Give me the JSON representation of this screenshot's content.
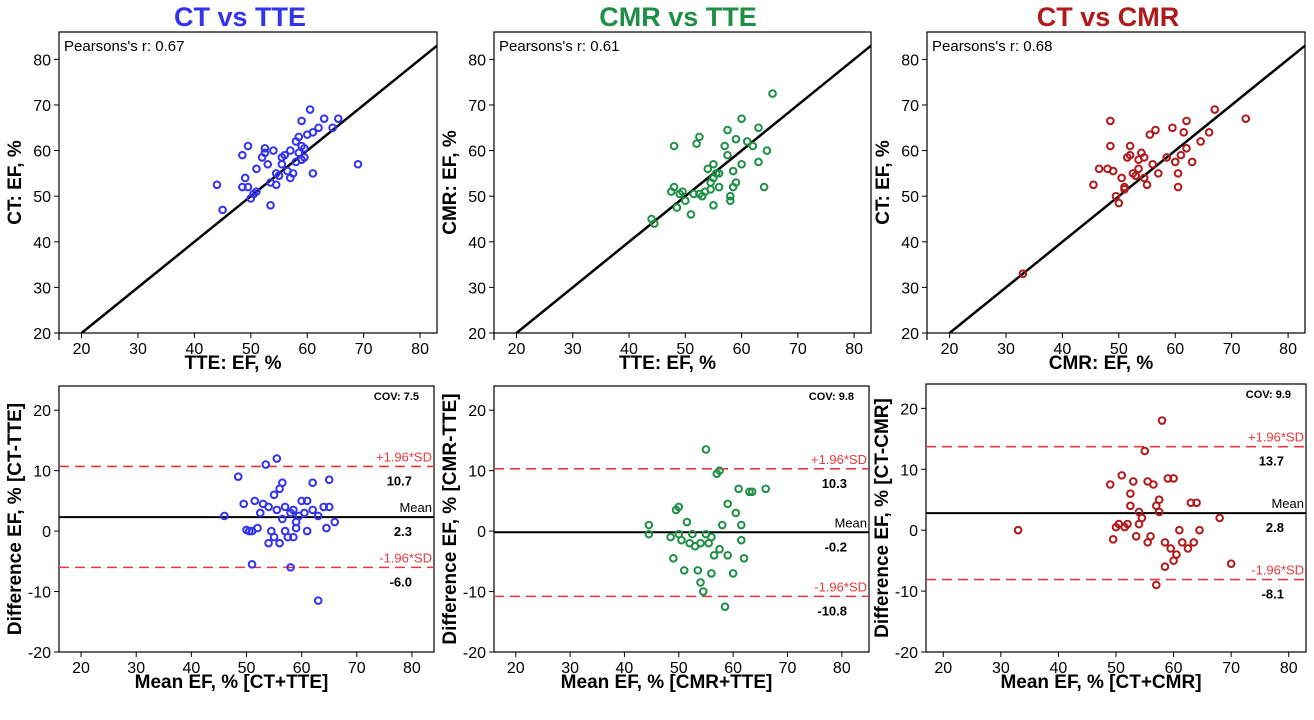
{
  "column_titles": [
    {
      "text": "CT vs TTE",
      "color": "#3333ee"
    },
    {
      "text": "CMR vs TTE",
      "color": "#1f8f45"
    },
    {
      "text": "CT vs CMR",
      "color": "#b01a1a"
    }
  ],
  "chart_data": [
    {
      "type": "scatter",
      "title": "CT vs TTE",
      "annotation": "Pearsons's r: 0.67",
      "xlabel": "TTE: EF, %",
      "ylabel": "CT: EF, %",
      "xlim": [
        16,
        83
      ],
      "ylim": [
        20,
        86
      ],
      "xticks": [
        20,
        30,
        40,
        50,
        60,
        70,
        80
      ],
      "yticks": [
        20,
        30,
        40,
        50,
        60,
        70,
        80
      ],
      "color": "#3333ee",
      "identity_line": true,
      "points": [
        [
          44,
          52.5
        ],
        [
          45,
          47
        ],
        [
          48.5,
          52
        ],
        [
          48.5,
          59
        ],
        [
          49,
          54
        ],
        [
          49.5,
          61
        ],
        [
          49.5,
          52
        ],
        [
          50,
          49.5
        ],
        [
          50.5,
          50.5
        ],
        [
          51,
          56
        ],
        [
          51,
          51
        ],
        [
          52,
          58.5
        ],
        [
          52.5,
          59.5
        ],
        [
          52.5,
          60.5
        ],
        [
          53,
          57
        ],
        [
          53.5,
          53
        ],
        [
          53.5,
          48
        ],
        [
          54,
          60
        ],
        [
          54.5,
          55
        ],
        [
          54.5,
          52.5
        ],
        [
          55,
          54.5
        ],
        [
          55.5,
          58.5
        ],
        [
          55.5,
          57
        ],
        [
          56,
          59
        ],
        [
          56.5,
          55.5
        ],
        [
          57,
          54
        ],
        [
          57,
          60
        ],
        [
          57.5,
          55
        ],
        [
          58,
          62
        ],
        [
          58,
          57.5
        ],
        [
          58.5,
          63
        ],
        [
          58.5,
          59.5
        ],
        [
          59,
          61
        ],
        [
          59,
          58
        ],
        [
          59,
          66.5
        ],
        [
          59.5,
          60.5
        ],
        [
          59.5,
          58.5
        ],
        [
          60,
          63.5
        ],
        [
          60.5,
          69
        ],
        [
          61,
          55
        ],
        [
          61,
          64
        ],
        [
          62,
          65
        ],
        [
          63,
          67
        ],
        [
          64.5,
          65
        ],
        [
          65.5,
          67
        ],
        [
          69,
          57
        ]
      ]
    },
    {
      "type": "scatter",
      "title": "CMR vs TTE",
      "annotation": "Pearsons's r: 0.61",
      "xlabel": "TTE: EF, %",
      "ylabel": "CMR: EF, %",
      "xlim": [
        16,
        83
      ],
      "ylim": [
        20,
        86
      ],
      "xticks": [
        20,
        30,
        40,
        50,
        60,
        70,
        80
      ],
      "yticks": [
        20,
        30,
        40,
        50,
        60,
        70,
        80
      ],
      "color": "#1f8f45",
      "identity_line": true,
      "points": [
        [
          44,
          45
        ],
        [
          44.5,
          44
        ],
        [
          47.5,
          51
        ],
        [
          48,
          61
        ],
        [
          48,
          52
        ],
        [
          48.5,
          47.5
        ],
        [
          49,
          50.5
        ],
        [
          49.5,
          51
        ],
        [
          50,
          49
        ],
        [
          51,
          46
        ],
        [
          51.5,
          50.5
        ],
        [
          52,
          61.5
        ],
        [
          52.5,
          63
        ],
        [
          52.5,
          50.5
        ],
        [
          53,
          50
        ],
        [
          53.5,
          51
        ],
        [
          54,
          56
        ],
        [
          54.5,
          53
        ],
        [
          54.5,
          51.5
        ],
        [
          55,
          57
        ],
        [
          55,
          54
        ],
        [
          55,
          48
        ],
        [
          55.5,
          55
        ],
        [
          56,
          55
        ],
        [
          56,
          52
        ],
        [
          57,
          61
        ],
        [
          57.5,
          64.5
        ],
        [
          57.5,
          59
        ],
        [
          58,
          50
        ],
        [
          58,
          49
        ],
        [
          58.5,
          55.5
        ],
        [
          58.5,
          52
        ],
        [
          59,
          53
        ],
        [
          59,
          62.5
        ],
        [
          60,
          67
        ],
        [
          60,
          57
        ],
        [
          61,
          62
        ],
        [
          62,
          61
        ],
        [
          63,
          65
        ],
        [
          63,
          57.5
        ],
        [
          64,
          52
        ],
        [
          64.5,
          60
        ],
        [
          65.5,
          72.5
        ]
      ]
    },
    {
      "type": "scatter",
      "title": "CT vs CMR",
      "annotation": "Pearsons's r: 0.68",
      "xlabel": "CMR: EF, %",
      "ylabel": "CT: EF, %",
      "xlim": [
        16,
        83
      ],
      "ylim": [
        20,
        86
      ],
      "xticks": [
        20,
        30,
        40,
        50,
        60,
        70,
        80
      ],
      "yticks": [
        20,
        30,
        40,
        50,
        60,
        70,
        80
      ],
      "color": "#b01a1a",
      "identity_line": true,
      "points": [
        [
          33,
          33
        ],
        [
          45.5,
          52.5
        ],
        [
          46.5,
          56
        ],
        [
          48,
          56
        ],
        [
          48.5,
          61
        ],
        [
          48.5,
          66.5
        ],
        [
          49,
          55.5
        ],
        [
          49.5,
          50
        ],
        [
          50,
          48.5
        ],
        [
          50.5,
          54
        ],
        [
          51,
          52
        ],
        [
          51,
          51.5
        ],
        [
          51.5,
          58.5
        ],
        [
          52,
          59
        ],
        [
          52,
          61
        ],
        [
          52.5,
          55
        ],
        [
          53,
          54.5
        ],
        [
          53.5,
          58
        ],
        [
          53.5,
          56
        ],
        [
          54,
          59.5
        ],
        [
          54.5,
          58.5
        ],
        [
          54.5,
          54
        ],
        [
          55,
          52.5
        ],
        [
          55.5,
          63.5
        ],
        [
          56,
          57
        ],
        [
          56.5,
          64.5
        ],
        [
          57,
          55
        ],
        [
          58.5,
          58.5
        ],
        [
          59.5,
          65
        ],
        [
          60,
          57.5
        ],
        [
          60.5,
          52
        ],
        [
          60.5,
          55
        ],
        [
          61,
          59
        ],
        [
          61.5,
          64
        ],
        [
          62,
          60.5
        ],
        [
          62,
          66.5
        ],
        [
          63,
          57.5
        ],
        [
          64.5,
          62
        ],
        [
          66,
          64
        ],
        [
          67,
          69
        ],
        [
          72.5,
          67
        ]
      ]
    },
    {
      "type": "scatter",
      "title": "",
      "annotation": "COV: 7.5",
      "xlabel": "Mean EF, % [CT+TTE]",
      "ylabel": "Difference EF, % [CT-TTE]",
      "xlim": [
        16,
        84
      ],
      "ylim": [
        -20,
        24
      ],
      "xticks": [
        20,
        30,
        40,
        50,
        60,
        70,
        80
      ],
      "yticks": [
        -20,
        -10,
        0,
        10,
        20
      ],
      "color": "#3333ee",
      "lines": [
        {
          "kind": "upper",
          "value": 10.7,
          "label": "+1.96*SD",
          "value_label": "10.7"
        },
        {
          "kind": "mean",
          "value": 2.3,
          "label": "Mean",
          "value_label": "2.3"
        },
        {
          "kind": "lower",
          "value": -6.0,
          "label": "-1.96*SD",
          "value_label": "-6.0"
        }
      ],
      "points": [
        [
          46,
          2.5
        ],
        [
          48.5,
          9
        ],
        [
          49.5,
          4.5
        ],
        [
          50,
          0.2
        ],
        [
          50.5,
          0
        ],
        [
          51,
          0
        ],
        [
          51,
          -5.5
        ],
        [
          51.5,
          5
        ],
        [
          52,
          0.5
        ],
        [
          52.5,
          3
        ],
        [
          53,
          4.5
        ],
        [
          53.5,
          11
        ],
        [
          54,
          -2
        ],
        [
          54,
          4
        ],
        [
          54.5,
          0
        ],
        [
          55,
          -1
        ],
        [
          55,
          6
        ],
        [
          55.5,
          12
        ],
        [
          55.5,
          3.5
        ],
        [
          56,
          7
        ],
        [
          56,
          -2
        ],
        [
          56.5,
          2
        ],
        [
          56.5,
          8
        ],
        [
          57,
          4
        ],
        [
          57,
          0
        ],
        [
          57.5,
          -1
        ],
        [
          58,
          3
        ],
        [
          58,
          -6
        ],
        [
          58.5,
          -1
        ],
        [
          58.5,
          3.5
        ],
        [
          59,
          1.5
        ],
        [
          59,
          0.5
        ],
        [
          59.5,
          2.5
        ],
        [
          60,
          5
        ],
        [
          60.5,
          3
        ],
        [
          61,
          5
        ],
        [
          61,
          0
        ],
        [
          62,
          3.5
        ],
        [
          62,
          8
        ],
        [
          63,
          -11.5
        ],
        [
          63,
          2.5
        ],
        [
          64,
          4
        ],
        [
          64.5,
          0.5
        ],
        [
          65,
          8.5
        ],
        [
          65,
          4
        ],
        [
          66,
          1.5
        ]
      ]
    },
    {
      "type": "scatter",
      "title": "",
      "annotation": "COV: 9.8",
      "xlabel": "Mean EF, % [CMR+TTE]",
      "ylabel": "Difference EF, % [CMR-TTE]",
      "xlim": [
        16,
        85
      ],
      "ylim": [
        -20,
        24
      ],
      "xticks": [
        20,
        30,
        40,
        50,
        60,
        70,
        80
      ],
      "yticks": [
        -20,
        -10,
        0,
        10,
        20
      ],
      "color": "#1f8f45",
      "lines": [
        {
          "kind": "upper",
          "value": 10.3,
          "label": "+1.96*SD",
          "value_label": "10.3"
        },
        {
          "kind": "mean",
          "value": -0.2,
          "label": "Mean",
          "value_label": "-0.2"
        },
        {
          "kind": "lower",
          "value": -10.8,
          "label": "-1.96*SD",
          "value_label": "-10.8"
        }
      ],
      "points": [
        [
          44.5,
          1
        ],
        [
          44.5,
          -0.5
        ],
        [
          48.5,
          -1
        ],
        [
          49,
          -4.5
        ],
        [
          49.5,
          3.5
        ],
        [
          50,
          4
        ],
        [
          50,
          -0.5
        ],
        [
          50.5,
          -1.5
        ],
        [
          51,
          -6.5
        ],
        [
          51.5,
          1.5
        ],
        [
          52,
          -2
        ],
        [
          52.5,
          -0.5
        ],
        [
          53,
          -2.5
        ],
        [
          53.5,
          -6.5
        ],
        [
          54,
          -8.5
        ],
        [
          54,
          -2
        ],
        [
          54.5,
          -10
        ],
        [
          55,
          13.5
        ],
        [
          55,
          -0.5
        ],
        [
          55.5,
          -2
        ],
        [
          56,
          -7
        ],
        [
          56,
          -1
        ],
        [
          56.5,
          -4
        ],
        [
          57,
          9.5
        ],
        [
          57.5,
          10
        ],
        [
          57.5,
          -3
        ],
        [
          58,
          1
        ],
        [
          58.5,
          -12.5
        ],
        [
          59,
          4.5
        ],
        [
          59,
          -4
        ],
        [
          60,
          -7
        ],
        [
          60.5,
          3
        ],
        [
          61,
          7
        ],
        [
          61.5,
          1
        ],
        [
          61.5,
          -1.5
        ],
        [
          62,
          -4.5
        ],
        [
          63,
          6.5
        ],
        [
          63.5,
          6.5
        ],
        [
          66,
          7
        ]
      ]
    },
    {
      "type": "scatter",
      "title": "",
      "annotation": "COV: 9.9",
      "xlabel": "Mean EF, % [CT+CMR]",
      "ylabel": "Difference EF, % [CT-CMR]",
      "xlim": [
        17,
        83
      ],
      "ylim": [
        -20,
        24
      ],
      "xticks": [
        20,
        30,
        40,
        50,
        60,
        70,
        80
      ],
      "yticks": [
        -20,
        -10,
        0,
        10,
        20
      ],
      "color": "#b01a1a",
      "lines": [
        {
          "kind": "upper",
          "value": 13.7,
          "label": "+1.96*SD",
          "value_label": "13.7"
        },
        {
          "kind": "mean",
          "value": 2.8,
          "label": "Mean",
          "value_label": "2.8"
        },
        {
          "kind": "lower",
          "value": -8.1,
          "label": "-1.96*SD",
          "value_label": "-8.1"
        }
      ],
      "points": [
        [
          33,
          0
        ],
        [
          49,
          7.5
        ],
        [
          49.5,
          -1.5
        ],
        [
          50,
          0.5
        ],
        [
          50.5,
          1
        ],
        [
          51,
          9
        ],
        [
          51.5,
          0.5
        ],
        [
          52,
          1
        ],
        [
          52.5,
          4
        ],
        [
          52.5,
          6
        ],
        [
          53,
          8
        ],
        [
          53.5,
          -1
        ],
        [
          54,
          3
        ],
        [
          54,
          1
        ],
        [
          54.5,
          2
        ],
        [
          55,
          13
        ],
        [
          55.5,
          8
        ],
        [
          55.5,
          -2
        ],
        [
          56,
          -1
        ],
        [
          56.5,
          7.5
        ],
        [
          57,
          4
        ],
        [
          57,
          -9
        ],
        [
          57.5,
          5
        ],
        [
          57.5,
          3
        ],
        [
          58,
          18
        ],
        [
          58.5,
          -6
        ],
        [
          58.5,
          -2
        ],
        [
          59,
          8.5
        ],
        [
          59.5,
          -3
        ],
        [
          60,
          8.5
        ],
        [
          60,
          -5
        ],
        [
          60.5,
          -4
        ],
        [
          61,
          0
        ],
        [
          61.5,
          -2
        ],
        [
          62.5,
          -3
        ],
        [
          63,
          4.5
        ],
        [
          63.5,
          -2
        ],
        [
          64,
          4.5
        ],
        [
          64.5,
          0
        ],
        [
          68,
          2
        ],
        [
          70,
          -5.5
        ]
      ]
    }
  ]
}
